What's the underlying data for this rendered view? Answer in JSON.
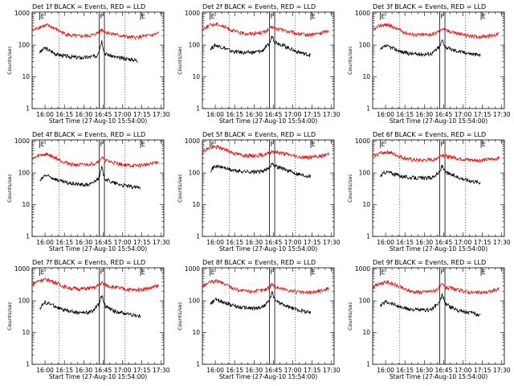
{
  "chart_data": [
    {
      "type": "line",
      "title": "Det 1f BLACK = Events, RED = LLD",
      "xlabel": "Start Time (27-Aug-10 15:54:00)",
      "ylabel": "Counts/sec",
      "x_range_minutes": [
        -4,
        98
      ],
      "xticks": [
        "16:00",
        "16:15",
        "16:30",
        "16:45",
        "17:00",
        "17:15",
        "17:30"
      ],
      "yticks": [
        "1",
        "10",
        "100",
        "1000"
      ],
      "ylim": [
        1,
        1100
      ],
      "yscale": "log",
      "markers": {
        "E_start": 2,
        "F_start": 48,
        "F_end": 52,
        "E_end": 80,
        "dotted": [
          17,
          68
        ]
      },
      "marker_labels": [
        "E",
        "F",
        "E"
      ],
      "series": [
        {
          "color": "#000000",
          "t": [
            2,
            6,
            10,
            16,
            22,
            28,
            34,
            40,
            46,
            48,
            50,
            52,
            56,
            62,
            68,
            74,
            78
          ],
          "y": [
            60,
            82,
            65,
            50,
            45,
            42,
            40,
            42,
            45,
            75,
            140,
            55,
            48,
            40,
            38,
            35,
            32
          ]
        },
        {
          "color": "#e81010",
          "t": [
            -4,
            2,
            8,
            14,
            20,
            26,
            32,
            38,
            44,
            48,
            50,
            52,
            58,
            64,
            70,
            76,
            82,
            88,
            94
          ],
          "y": [
            280,
            380,
            420,
            330,
            240,
            200,
            190,
            195,
            210,
            260,
            320,
            260,
            230,
            200,
            180,
            175,
            190,
            200,
            240
          ]
        }
      ]
    },
    {
      "type": "line",
      "title": "Det 2f BLACK = Events, RED = LLD",
      "xlabel": "Start Time (27-Aug-10 15:54:00)",
      "ylabel": "Counts/sec",
      "x_range_minutes": [
        -4,
        98
      ],
      "xticks": [
        "16:00",
        "16:15",
        "16:30",
        "16:45",
        "17:00",
        "17:15",
        "17:30"
      ],
      "yticks": [
        "1",
        "10",
        "100",
        "1000"
      ],
      "ylim": [
        1,
        1100
      ],
      "yscale": "log",
      "markers": {
        "E_start": 2,
        "F_start": 48,
        "F_end": 52,
        "E_end": 80,
        "dotted": [
          17,
          68
        ]
      },
      "marker_labels": [
        "E",
        "F",
        "E"
      ],
      "series": [
        {
          "color": "#000000",
          "t": [
            2,
            6,
            12,
            18,
            24,
            30,
            36,
            42,
            48,
            50,
            52,
            56,
            62,
            68,
            74,
            80
          ],
          "y": [
            75,
            100,
            85,
            65,
            60,
            58,
            60,
            65,
            110,
            200,
            130,
            110,
            85,
            65,
            55,
            48
          ]
        },
        {
          "color": "#e81010",
          "t": [
            -4,
            2,
            8,
            14,
            20,
            26,
            32,
            38,
            44,
            48,
            50,
            52,
            58,
            64,
            70,
            76,
            82,
            88,
            94
          ],
          "y": [
            320,
            430,
            460,
            360,
            280,
            240,
            230,
            240,
            260,
            320,
            380,
            330,
            300,
            260,
            230,
            210,
            220,
            240,
            300
          ]
        }
      ]
    },
    {
      "type": "line",
      "title": "Det 3f BLACK = Events, RED = LLD",
      "xlabel": "Start Time (27-Aug-10 15:54:00)",
      "ylabel": "Counts/sec",
      "x_range_minutes": [
        -4,
        98
      ],
      "xticks": [
        "16:00",
        "16:15",
        "16:30",
        "16:45",
        "17:00",
        "17:15",
        "17:30"
      ],
      "yticks": [
        "1",
        "10",
        "100",
        "1000"
      ],
      "ylim": [
        1,
        1100
      ],
      "yscale": "log",
      "markers": {
        "E_start": 2,
        "F_start": 48,
        "F_end": 52,
        "E_end": 80,
        "dotted": [
          17,
          68
        ]
      },
      "marker_labels": [
        "E",
        "F",
        "E"
      ],
      "series": [
        {
          "color": "#000000",
          "t": [
            2,
            6,
            12,
            18,
            24,
            30,
            36,
            42,
            48,
            50,
            52,
            56,
            62,
            68,
            74,
            80
          ],
          "y": [
            70,
            95,
            80,
            62,
            55,
            52,
            52,
            55,
            90,
            150,
            90,
            75,
            65,
            58,
            52,
            48
          ]
        },
        {
          "color": "#e81010",
          "t": [
            -4,
            2,
            8,
            14,
            20,
            26,
            32,
            38,
            44,
            48,
            50,
            52,
            58,
            64,
            70,
            76,
            82,
            88,
            94
          ],
          "y": [
            300,
            420,
            440,
            340,
            260,
            220,
            210,
            215,
            230,
            290,
            350,
            290,
            260,
            220,
            200,
            185,
            190,
            200,
            230
          ]
        }
      ]
    },
    {
      "type": "line",
      "title": "Det 4f BLACK = Events, RED = LLD",
      "xlabel": "Start Time (27-Aug-10 15:54:00)",
      "ylabel": "Counts/sec",
      "x_range_minutes": [
        -4,
        98
      ],
      "xticks": [
        "16:00",
        "16:15",
        "16:30",
        "16:45",
        "17:00",
        "17:15",
        "17:30"
      ],
      "yticks": [
        "1",
        "10",
        "100",
        "1000"
      ],
      "ylim": [
        1,
        1100
      ],
      "yscale": "log",
      "markers": {
        "E_start": 2,
        "F_start": 48,
        "F_end": 52,
        "E_end": 80,
        "dotted": [
          17,
          68
        ]
      },
      "marker_labels": [
        "E",
        "F",
        "E"
      ],
      "series": [
        {
          "color": "#000000",
          "t": [
            2,
            6,
            12,
            18,
            24,
            30,
            36,
            42,
            48,
            50,
            52,
            56,
            62,
            68,
            74,
            80
          ],
          "y": [
            55,
            85,
            70,
            55,
            48,
            45,
            42,
            45,
            75,
            150,
            70,
            55,
            45,
            40,
            36,
            34
          ]
        },
        {
          "color": "#e81010",
          "t": [
            -4,
            2,
            8,
            14,
            20,
            26,
            32,
            38,
            44,
            48,
            50,
            52,
            58,
            64,
            70,
            76,
            82,
            88,
            94
          ],
          "y": [
            270,
            370,
            390,
            300,
            230,
            190,
            180,
            185,
            200,
            250,
            310,
            250,
            220,
            190,
            175,
            170,
            180,
            195,
            230
          ]
        }
      ]
    },
    {
      "type": "line",
      "title": "Det 5f BLACK = Events, RED = LLD",
      "xlabel": "Start Time (27-Aug-10 15:54:00)",
      "ylabel": "Counts/sec",
      "x_range_minutes": [
        -4,
        98
      ],
      "xticks": [
        "16:00",
        "16:15",
        "16:30",
        "16:45",
        "17:00",
        "17:15",
        "17:30"
      ],
      "yticks": [
        "1",
        "10",
        "100",
        "1000"
      ],
      "ylim": [
        1,
        1100
      ],
      "yscale": "log",
      "markers": {
        "E_start": 2,
        "F_start": 48,
        "F_end": 52,
        "E_end": 80,
        "dotted": [
          17,
          68
        ]
      },
      "marker_labels": [
        "E",
        "F",
        "E"
      ],
      "series": [
        {
          "color": "#000000",
          "t": [
            2,
            6,
            12,
            18,
            24,
            30,
            36,
            42,
            48,
            50,
            52,
            56,
            62,
            68,
            74,
            80
          ],
          "y": [
            120,
            165,
            150,
            125,
            115,
            110,
            108,
            112,
            140,
            220,
            170,
            150,
            120,
            100,
            85,
            80
          ]
        },
        {
          "color": "#e81010",
          "t": [
            -4,
            2,
            8,
            14,
            20,
            26,
            32,
            38,
            44,
            48,
            50,
            52,
            58,
            64,
            70,
            76,
            82,
            88,
            94
          ],
          "y": [
            480,
            620,
            660,
            540,
            430,
            370,
            350,
            360,
            380,
            430,
            500,
            460,
            420,
            370,
            330,
            310,
            320,
            340,
            400
          ]
        }
      ]
    },
    {
      "type": "line",
      "title": "Det 6f BLACK = Events, RED = LLD",
      "xlabel": "Start Time (27-Aug-10 15:54:00)",
      "ylabel": "Counts/sec",
      "x_range_minutes": [
        -4,
        98
      ],
      "xticks": [
        "16:00",
        "16:15",
        "16:30",
        "16:45",
        "17:00",
        "17:15",
        "17:30"
      ],
      "yticks": [
        "1",
        "10",
        "100",
        "1000"
      ],
      "ylim": [
        1,
        1100
      ],
      "yscale": "log",
      "markers": {
        "E_start": 2,
        "F_start": 48,
        "F_end": 52,
        "E_end": 80,
        "dotted": [
          17,
          68
        ]
      },
      "marker_labels": [
        "E",
        "F",
        "E"
      ],
      "series": [
        {
          "color": "#000000",
          "t": [
            2,
            6,
            12,
            18,
            24,
            30,
            36,
            42,
            48,
            50,
            52,
            56,
            62,
            68,
            74,
            80
          ],
          "y": [
            80,
            110,
            95,
            80,
            72,
            70,
            68,
            72,
            105,
            180,
            110,
            90,
            75,
            62,
            55,
            50
          ]
        },
        {
          "color": "#e81010",
          "t": [
            -4,
            2,
            8,
            14,
            20,
            26,
            32,
            38,
            44,
            48,
            50,
            52,
            58,
            64,
            70,
            76,
            82,
            88,
            94
          ],
          "y": [
            330,
            430,
            460,
            370,
            300,
            260,
            250,
            255,
            270,
            330,
            390,
            340,
            310,
            280,
            260,
            250,
            255,
            270,
            300
          ]
        }
      ]
    },
    {
      "type": "line",
      "title": "Det 7f BLACK = Events, RED = LLD",
      "xlabel": "Start Time (27-Aug-10 15:54:00)",
      "ylabel": "Counts/sec",
      "x_range_minutes": [
        -4,
        98
      ],
      "xticks": [
        "16:00",
        "16:15",
        "16:30",
        "16:45",
        "17:00",
        "17:15",
        "17:30"
      ],
      "yticks": [
        "1",
        "10",
        "100",
        "1000"
      ],
      "ylim": [
        1,
        1100
      ],
      "yscale": "log",
      "markers": {
        "E_start": 2,
        "F_start": 48,
        "F_end": 52,
        "E_end": 80,
        "dotted": [
          17,
          68
        ]
      },
      "marker_labels": [
        "E",
        "F",
        "E"
      ],
      "series": [
        {
          "color": "#000000",
          "t": [
            2,
            6,
            12,
            18,
            24,
            30,
            36,
            42,
            48,
            50,
            52,
            56,
            62,
            68,
            74,
            80
          ],
          "y": [
            60,
            90,
            75,
            55,
            48,
            44,
            42,
            45,
            80,
            160,
            75,
            55,
            45,
            40,
            36,
            32
          ]
        },
        {
          "color": "#e81010",
          "t": [
            -4,
            2,
            8,
            14,
            20,
            26,
            32,
            38,
            44,
            48,
            50,
            52,
            58,
            64,
            70,
            76,
            82,
            88,
            94
          ],
          "y": [
            330,
            450,
            470,
            380,
            290,
            250,
            240,
            245,
            260,
            320,
            380,
            320,
            280,
            250,
            230,
            220,
            235,
            255,
            300
          ]
        }
      ]
    },
    {
      "type": "line",
      "title": "Det 8f BLACK = Events, RED = LLD",
      "xlabel": "Start Time (27-Aug-10 15:54:00)",
      "ylabel": "Counts/sec",
      "x_range_minutes": [
        -4,
        98
      ],
      "xticks": [
        "16:00",
        "16:15",
        "16:30",
        "16:45",
        "17:00",
        "17:15",
        "17:30"
      ],
      "yticks": [
        "1",
        "10",
        "100",
        "1000"
      ],
      "ylim": [
        1,
        1100
      ],
      "yscale": "log",
      "markers": {
        "E_start": 2,
        "F_start": 48,
        "F_end": 52,
        "E_end": 80,
        "dotted": [
          17,
          68
        ]
      },
      "marker_labels": [
        "E",
        "F",
        "E"
      ],
      "series": [
        {
          "color": "#000000",
          "t": [
            2,
            6,
            12,
            18,
            24,
            30,
            36,
            42,
            48,
            50,
            52,
            56,
            62,
            68,
            74,
            80
          ],
          "y": [
            75,
            110,
            95,
            75,
            65,
            60,
            58,
            62,
            100,
            190,
            110,
            85,
            65,
            55,
            48,
            42
          ]
        },
        {
          "color": "#e81010",
          "t": [
            -4,
            2,
            8,
            14,
            20,
            26,
            32,
            38,
            44,
            48,
            50,
            52,
            58,
            64,
            70,
            76,
            82,
            88,
            94
          ],
          "y": [
            290,
            390,
            420,
            330,
            250,
            210,
            200,
            205,
            220,
            280,
            350,
            280,
            240,
            210,
            190,
            180,
            190,
            210,
            250
          ]
        }
      ]
    },
    {
      "type": "line",
      "title": "Det 9f BLACK = Events, RED = LLD",
      "xlabel": "Start Time (27-Aug-10 15:54:00)",
      "ylabel": "Counts/sec",
      "x_range_minutes": [
        -4,
        98
      ],
      "xticks": [
        "16:00",
        "16:15",
        "16:30",
        "16:45",
        "17:00",
        "17:15",
        "17:30"
      ],
      "yticks": [
        "1",
        "10",
        "100",
        "1000"
      ],
      "ylim": [
        1,
        1100
      ],
      "yscale": "log",
      "markers": {
        "E_start": 2,
        "F_start": 48,
        "F_end": 52,
        "E_end": 80,
        "dotted": [
          17,
          68
        ]
      },
      "marker_labels": [
        "E",
        "F",
        "E"
      ],
      "series": [
        {
          "color": "#000000",
          "t": [
            2,
            6,
            12,
            18,
            24,
            30,
            36,
            42,
            48,
            50,
            52,
            56,
            62,
            68,
            74,
            80
          ],
          "y": [
            70,
            95,
            80,
            62,
            55,
            52,
            50,
            55,
            90,
            160,
            85,
            65,
            52,
            45,
            40,
            36
          ]
        },
        {
          "color": "#e81010",
          "t": [
            -4,
            2,
            8,
            14,
            20,
            26,
            32,
            38,
            44,
            48,
            50,
            52,
            58,
            64,
            70,
            76,
            82,
            88,
            94
          ],
          "y": [
            260,
            360,
            390,
            310,
            240,
            200,
            190,
            195,
            210,
            270,
            330,
            270,
            240,
            210,
            190,
            180,
            185,
            200,
            240
          ]
        }
      ]
    }
  ]
}
